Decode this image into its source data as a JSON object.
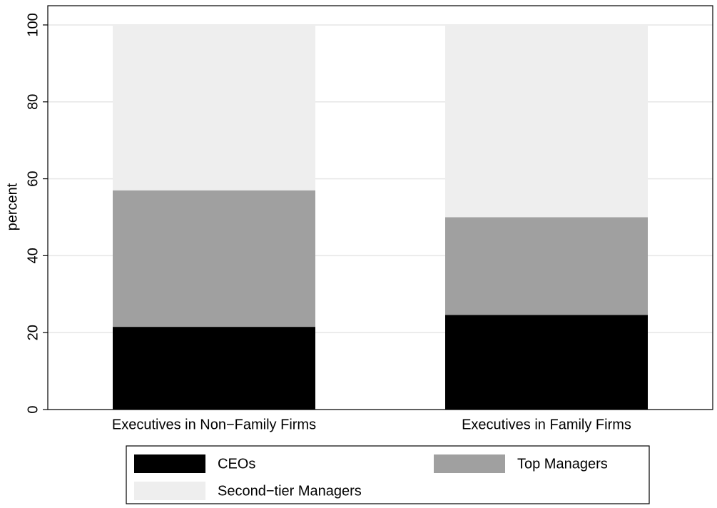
{
  "chart_data": {
    "type": "stacked_bar",
    "y_label": "percent",
    "categories": [
      "Executives in Non−Family Firms",
      "Executives in Family Firms"
    ],
    "series": [
      {
        "name": "CEOs",
        "color": "#000000",
        "values": [
          21.5,
          24.6
        ]
      },
      {
        "name": "Top Managers",
        "color": "#a0a0a0",
        "values": [
          35.5,
          25.4
        ]
      },
      {
        "name": "Second−tier Managers",
        "color": "#eeeeee",
        "values": [
          43,
          50
        ]
      }
    ],
    "ylim": [
      0,
      105
    ],
    "yticks": [
      0,
      20,
      40,
      60,
      80,
      100
    ],
    "grid": true
  }
}
